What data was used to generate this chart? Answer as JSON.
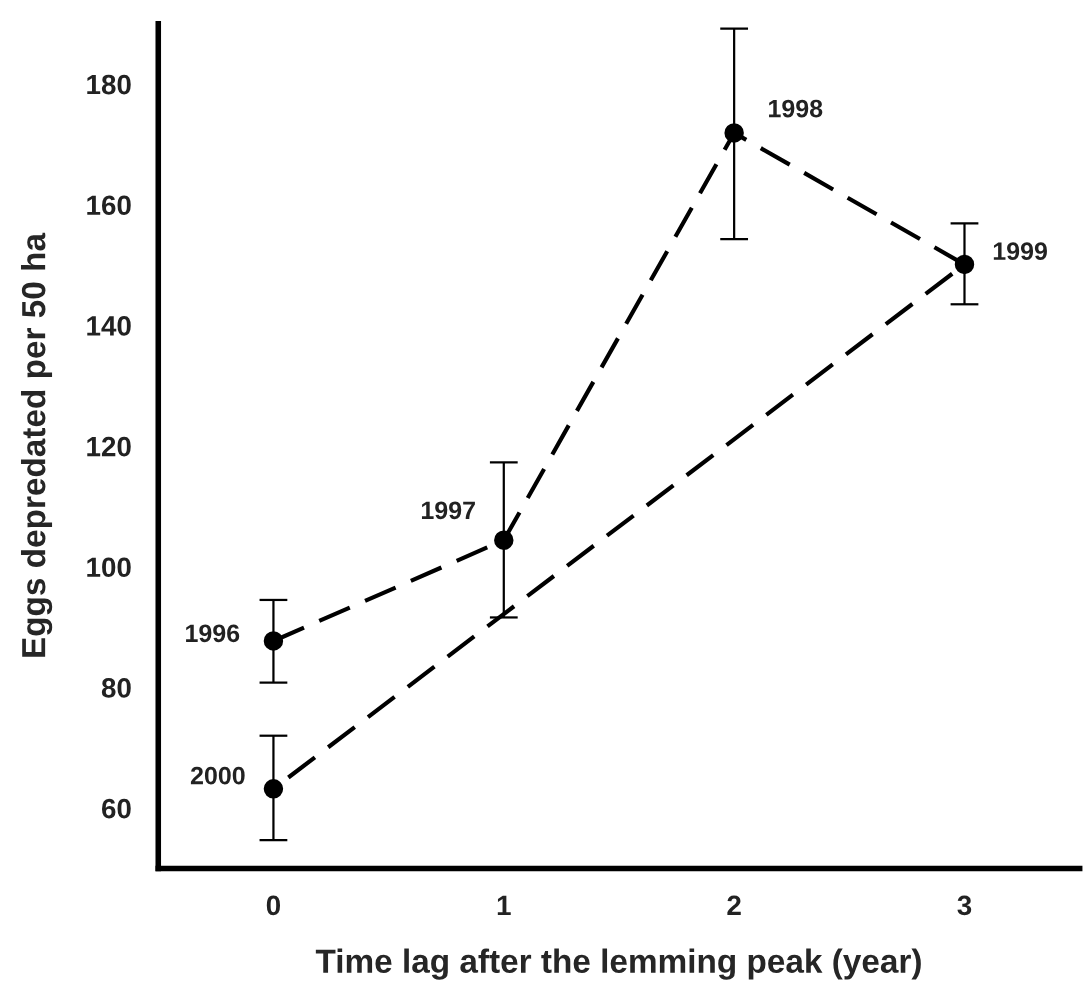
{
  "chart_data": {
    "type": "line",
    "xlabel": "Time lag after the lemming peak (year)",
    "ylabel": "Eggs depredated per 50 ha",
    "x": [
      0,
      1,
      2,
      3,
      0
    ],
    "series": [
      {
        "color": "#000000",
        "values": [
          87.7,
          104.4,
          171.9,
          150.1,
          63.2
        ],
        "errors": [
          [
            80.8,
            94.5
          ],
          [
            91.6,
            117.3
          ],
          [
            154.3,
            189.2
          ],
          [
            143.5,
            156.9
          ],
          [
            54.7,
            72.0
          ]
        ]
      }
    ],
    "marker": "circle",
    "line_style": "dashed",
    "grid": false,
    "legend": false,
    "xlim": [
      -0.5,
      3.5
    ],
    "xticks": [
      0,
      1,
      2,
      3
    ],
    "ylim": [
      50,
      190
    ],
    "yticks": [
      60,
      80,
      100,
      120,
      140,
      160,
      180
    ],
    "annotations": [
      {
        "text": "1996",
        "x": 0,
        "y": 87.7
      },
      {
        "text": "1997",
        "x": 1,
        "y": 104.4
      },
      {
        "text": "1998",
        "x": 2,
        "y": 171.9
      },
      {
        "text": "1999",
        "x": 3,
        "y": 150.1
      },
      {
        "text": "2000",
        "x": 0,
        "y": 63.2
      }
    ]
  }
}
